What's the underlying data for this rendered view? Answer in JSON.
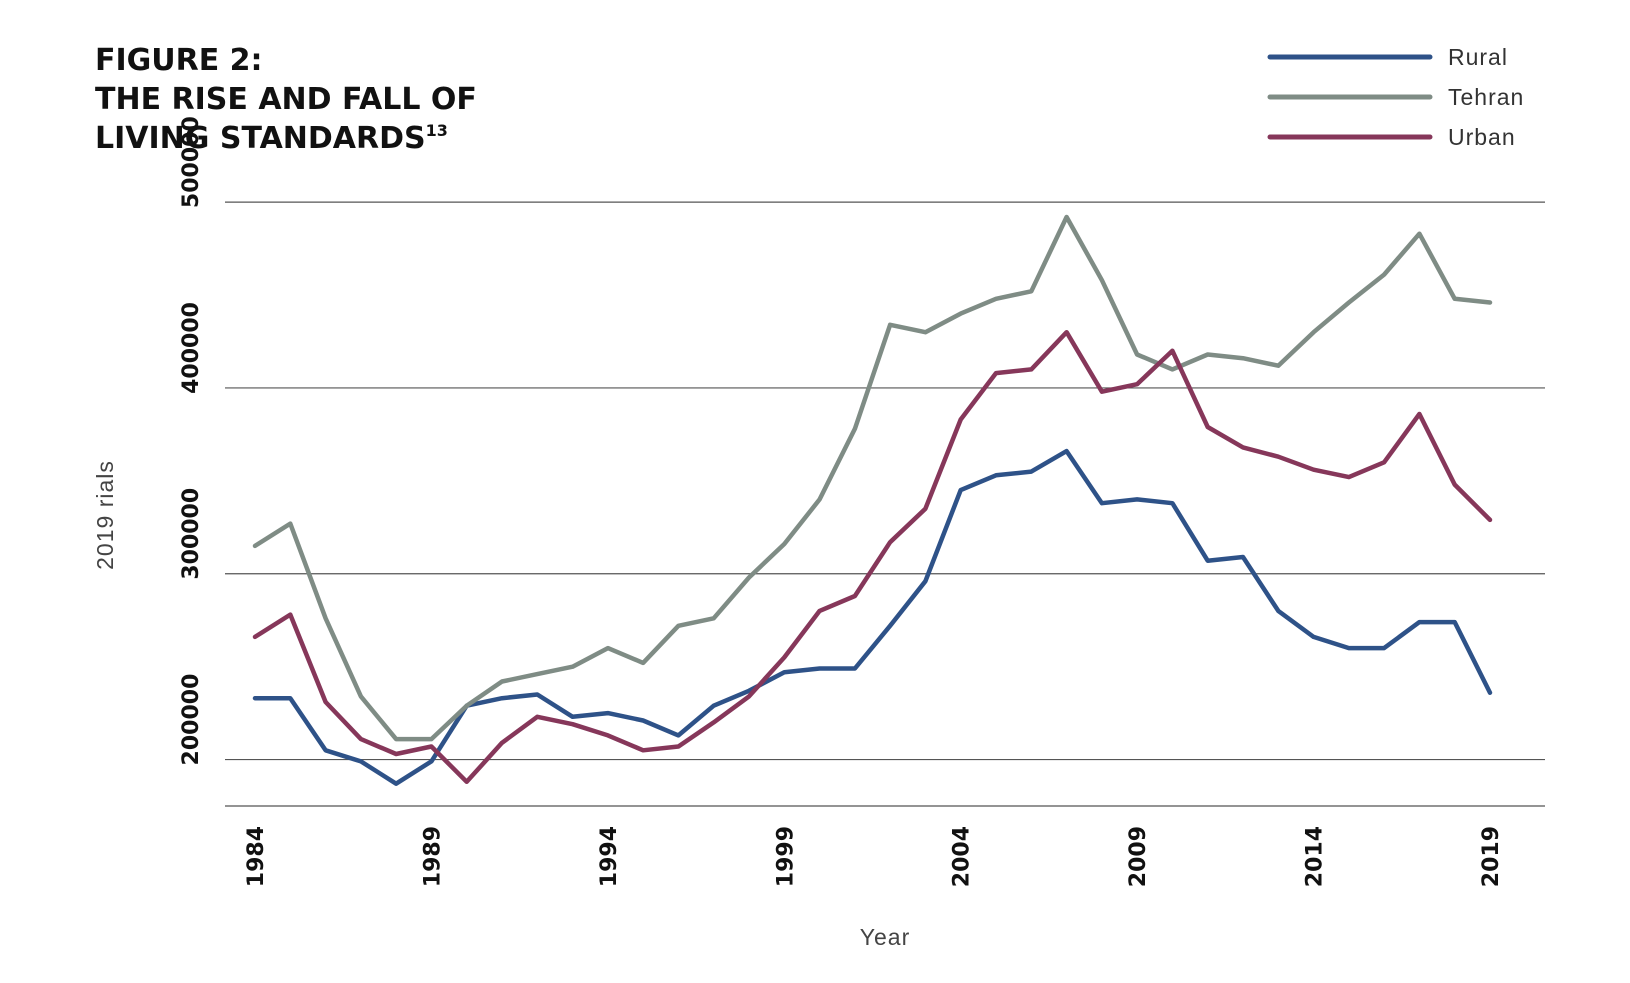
{
  "chart_data": {
    "type": "line",
    "title_lines": [
      "FIGURE 2:",
      "THE RISE AND FALL OF",
      "LIVING STANDARDS"
    ],
    "title_superscript": "13",
    "xlabel": "Year",
    "ylabel": "2019 rials",
    "x": [
      1984,
      1985,
      1986,
      1987,
      1988,
      1989,
      1990,
      1991,
      1992,
      1993,
      1994,
      1995,
      1996,
      1997,
      1998,
      1999,
      2000,
      2001,
      2002,
      2003,
      2004,
      2005,
      2006,
      2007,
      2008,
      2009,
      2010,
      2011,
      2012,
      2013,
      2014,
      2015,
      2016,
      2017,
      2018,
      2019
    ],
    "x_ticks": [
      "1984",
      "1989",
      "1994",
      "1999",
      "2004",
      "2009",
      "2014",
      "2019"
    ],
    "y_ticks": [
      "200000",
      "300000",
      "400000",
      "500000"
    ],
    "ylim": [
      175000,
      520000
    ],
    "grid": true,
    "legend_position": "top-right",
    "series": [
      {
        "name": "Rural",
        "color": "#2e5288",
        "values": [
          233000,
          233000,
          205000,
          199000,
          187000,
          199000,
          229000,
          233000,
          235000,
          223000,
          225000,
          221000,
          213000,
          229000,
          237000,
          247000,
          249000,
          249000,
          272000,
          296000,
          345000,
          353000,
          355000,
          366000,
          338000,
          340000,
          338000,
          307000,
          309000,
          280000,
          266000,
          260000,
          260000,
          274000,
          274000,
          236000
        ]
      },
      {
        "name": "Tehran",
        "color": "#7f8c85",
        "values": [
          315000,
          327000,
          276000,
          234000,
          211000,
          211000,
          229000,
          242000,
          246000,
          250000,
          260000,
          252000,
          272000,
          276000,
          298000,
          316000,
          340000,
          378000,
          434000,
          430000,
          440000,
          448000,
          452000,
          492000,
          458000,
          418000,
          410000,
          418000,
          416000,
          412000,
          430000,
          446000,
          461000,
          483000,
          448000,
          446000
        ]
      },
      {
        "name": "Urban",
        "color": "#86375a",
        "values": [
          266000,
          278000,
          231000,
          211000,
          203000,
          207000,
          188000,
          209000,
          223000,
          219000,
          213000,
          205000,
          207000,
          220000,
          234000,
          255000,
          280000,
          288000,
          317000,
          335000,
          383000,
          408000,
          410000,
          430000,
          398000,
          402000,
          420000,
          379000,
          368000,
          363000,
          356000,
          352000,
          360000,
          386000,
          348000,
          329000
        ]
      }
    ]
  }
}
